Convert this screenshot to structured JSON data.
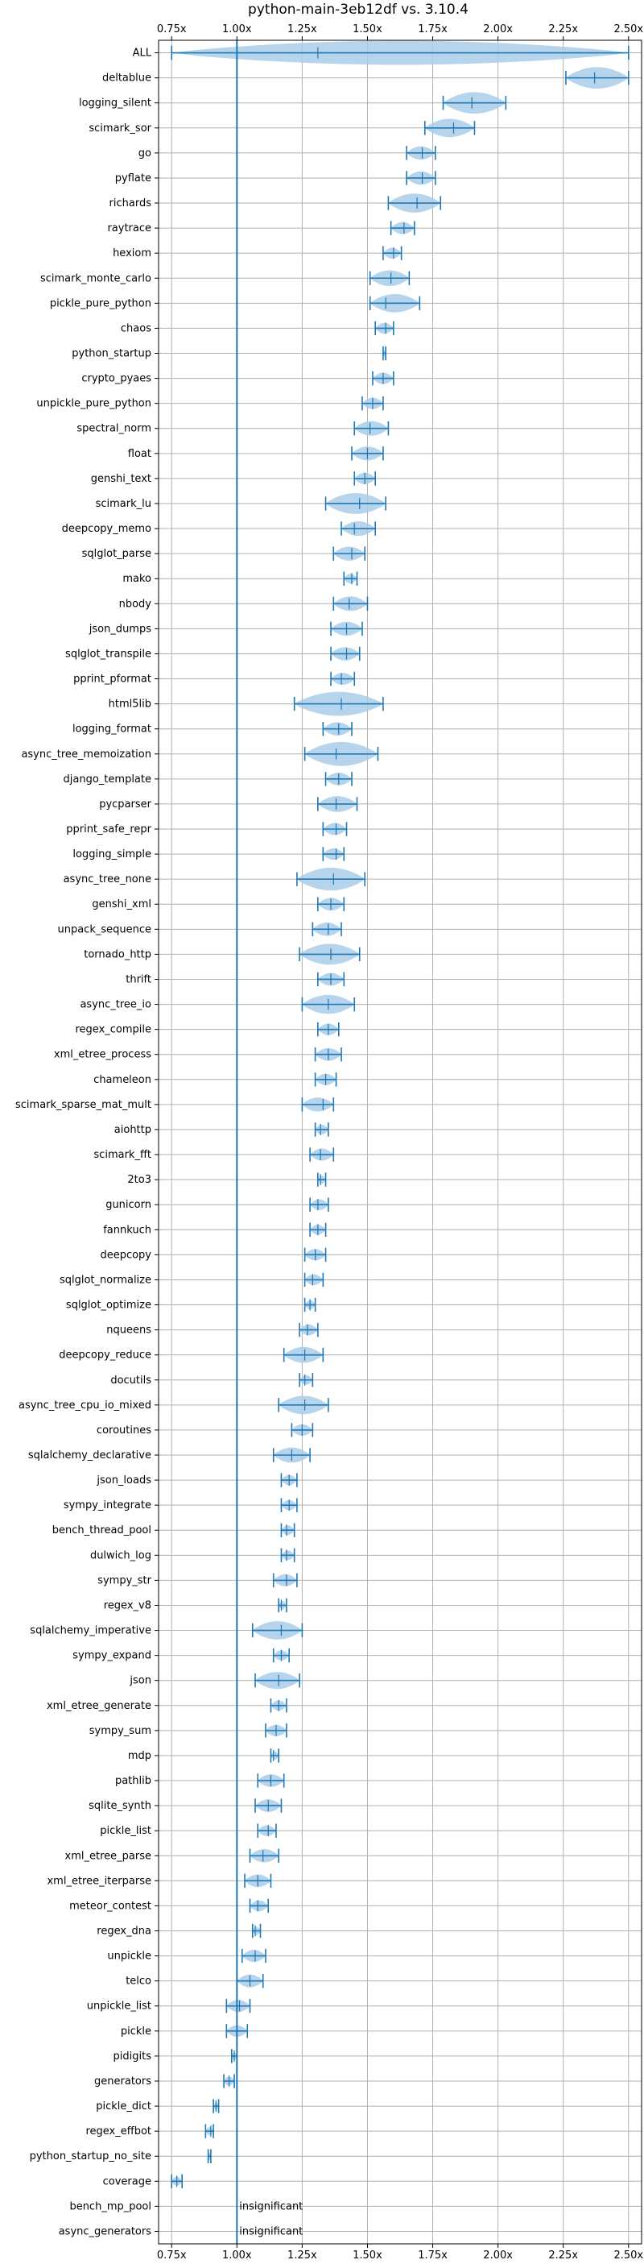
{
  "chart_data": {
    "type": "violin",
    "title": "python-main-3eb12df vs. 3.10.4",
    "xlabel": "",
    "ylabel": "",
    "xlim": [
      0.7,
      2.55
    ],
    "xticks": [
      "0.75x",
      "1.00x",
      "1.25x",
      "1.50x",
      "1.75x",
      "2.00x",
      "2.25x",
      "2.50x"
    ],
    "xtick_values": [
      0.75,
      1.0,
      1.25,
      1.5,
      1.75,
      2.0,
      2.25,
      2.5
    ],
    "reference_line": 1.0,
    "grid": true,
    "colors": {
      "violin": "#1f77b4",
      "violin_fill": "#a9cce8",
      "grid": "#b0b0b0"
    },
    "series": [
      {
        "name": "ALL",
        "min": 0.75,
        "median": 1.31,
        "max": 2.5
      },
      {
        "name": "deltablue",
        "min": 2.26,
        "median": 2.37,
        "max": 2.5
      },
      {
        "name": "logging_silent",
        "min": 1.79,
        "median": 1.9,
        "max": 2.03
      },
      {
        "name": "scimark_sor",
        "min": 1.72,
        "median": 1.83,
        "max": 1.91
      },
      {
        "name": "go",
        "min": 1.65,
        "median": 1.71,
        "max": 1.76
      },
      {
        "name": "pyflate",
        "min": 1.65,
        "median": 1.71,
        "max": 1.76
      },
      {
        "name": "richards",
        "min": 1.58,
        "median": 1.69,
        "max": 1.78
      },
      {
        "name": "raytrace",
        "min": 1.59,
        "median": 1.64,
        "max": 1.68
      },
      {
        "name": "hexiom",
        "min": 1.56,
        "median": 1.6,
        "max": 1.63
      },
      {
        "name": "scimark_monte_carlo",
        "min": 1.51,
        "median": 1.59,
        "max": 1.66
      },
      {
        "name": "pickle_pure_python",
        "min": 1.51,
        "median": 1.57,
        "max": 1.7
      },
      {
        "name": "chaos",
        "min": 1.53,
        "median": 1.57,
        "max": 1.6
      },
      {
        "name": "python_startup",
        "min": 1.56,
        "median": 1.57,
        "max": 1.57
      },
      {
        "name": "crypto_pyaes",
        "min": 1.52,
        "median": 1.56,
        "max": 1.6
      },
      {
        "name": "unpickle_pure_python",
        "min": 1.48,
        "median": 1.52,
        "max": 1.56
      },
      {
        "name": "spectral_norm",
        "min": 1.45,
        "median": 1.51,
        "max": 1.58
      },
      {
        "name": "float",
        "min": 1.44,
        "median": 1.5,
        "max": 1.56
      },
      {
        "name": "genshi_text",
        "min": 1.45,
        "median": 1.49,
        "max": 1.53
      },
      {
        "name": "scimark_lu",
        "min": 1.34,
        "median": 1.47,
        "max": 1.57
      },
      {
        "name": "deepcopy_memo",
        "min": 1.4,
        "median": 1.45,
        "max": 1.53
      },
      {
        "name": "sqlglot_parse",
        "min": 1.37,
        "median": 1.44,
        "max": 1.49
      },
      {
        "name": "mako",
        "min": 1.41,
        "median": 1.44,
        "max": 1.46
      },
      {
        "name": "nbody",
        "min": 1.37,
        "median": 1.43,
        "max": 1.5
      },
      {
        "name": "json_dumps",
        "min": 1.36,
        "median": 1.42,
        "max": 1.48
      },
      {
        "name": "sqlglot_transpile",
        "min": 1.36,
        "median": 1.42,
        "max": 1.47
      },
      {
        "name": "pprint_pformat",
        "min": 1.36,
        "median": 1.4,
        "max": 1.45
      },
      {
        "name": "html5lib",
        "min": 1.22,
        "median": 1.4,
        "max": 1.56
      },
      {
        "name": "logging_format",
        "min": 1.33,
        "median": 1.39,
        "max": 1.44
      },
      {
        "name": "async_tree_memoization",
        "min": 1.26,
        "median": 1.38,
        "max": 1.54
      },
      {
        "name": "django_template",
        "min": 1.34,
        "median": 1.39,
        "max": 1.44
      },
      {
        "name": "pycparser",
        "min": 1.31,
        "median": 1.38,
        "max": 1.46
      },
      {
        "name": "pprint_safe_repr",
        "min": 1.33,
        "median": 1.38,
        "max": 1.42
      },
      {
        "name": "logging_simple",
        "min": 1.33,
        "median": 1.38,
        "max": 1.41
      },
      {
        "name": "async_tree_none",
        "min": 1.23,
        "median": 1.37,
        "max": 1.49
      },
      {
        "name": "genshi_xml",
        "min": 1.31,
        "median": 1.36,
        "max": 1.41
      },
      {
        "name": "unpack_sequence",
        "min": 1.29,
        "median": 1.35,
        "max": 1.4
      },
      {
        "name": "tornado_http",
        "min": 1.24,
        "median": 1.36,
        "max": 1.47
      },
      {
        "name": "thrift",
        "min": 1.31,
        "median": 1.36,
        "max": 1.41
      },
      {
        "name": "async_tree_io",
        "min": 1.25,
        "median": 1.35,
        "max": 1.45
      },
      {
        "name": "regex_compile",
        "min": 1.31,
        "median": 1.35,
        "max": 1.39
      },
      {
        "name": "xml_etree_process",
        "min": 1.3,
        "median": 1.35,
        "max": 1.4
      },
      {
        "name": "chameleon",
        "min": 1.3,
        "median": 1.34,
        "max": 1.38
      },
      {
        "name": "scimark_sparse_mat_mult",
        "min": 1.25,
        "median": 1.33,
        "max": 1.37
      },
      {
        "name": "aiohttp",
        "min": 1.3,
        "median": 1.32,
        "max": 1.35
      },
      {
        "name": "scimark_fft",
        "min": 1.28,
        "median": 1.32,
        "max": 1.37
      },
      {
        "name": "2to3",
        "min": 1.31,
        "median": 1.32,
        "max": 1.34
      },
      {
        "name": "gunicorn",
        "min": 1.28,
        "median": 1.31,
        "max": 1.35
      },
      {
        "name": "fannkuch",
        "min": 1.28,
        "median": 1.31,
        "max": 1.34
      },
      {
        "name": "deepcopy",
        "min": 1.26,
        "median": 1.3,
        "max": 1.34
      },
      {
        "name": "sqlglot_normalize",
        "min": 1.26,
        "median": 1.29,
        "max": 1.33
      },
      {
        "name": "sqlglot_optimize",
        "min": 1.26,
        "median": 1.28,
        "max": 1.3
      },
      {
        "name": "nqueens",
        "min": 1.24,
        "median": 1.27,
        "max": 1.31
      },
      {
        "name": "deepcopy_reduce",
        "min": 1.18,
        "median": 1.26,
        "max": 1.33
      },
      {
        "name": "docutils",
        "min": 1.24,
        "median": 1.26,
        "max": 1.29
      },
      {
        "name": "async_tree_cpu_io_mixed",
        "min": 1.16,
        "median": 1.26,
        "max": 1.35
      },
      {
        "name": "coroutines",
        "min": 1.21,
        "median": 1.25,
        "max": 1.29
      },
      {
        "name": "sqlalchemy_declarative",
        "min": 1.14,
        "median": 1.21,
        "max": 1.28
      },
      {
        "name": "json_loads",
        "min": 1.17,
        "median": 1.2,
        "max": 1.23
      },
      {
        "name": "sympy_integrate",
        "min": 1.17,
        "median": 1.2,
        "max": 1.23
      },
      {
        "name": "bench_thread_pool",
        "min": 1.17,
        "median": 1.19,
        "max": 1.22
      },
      {
        "name": "dulwich_log",
        "min": 1.17,
        "median": 1.19,
        "max": 1.22
      },
      {
        "name": "sympy_str",
        "min": 1.14,
        "median": 1.19,
        "max": 1.23
      },
      {
        "name": "regex_v8",
        "min": 1.16,
        "median": 1.17,
        "max": 1.19
      },
      {
        "name": "sqlalchemy_imperative",
        "min": 1.06,
        "median": 1.17,
        "max": 1.25
      },
      {
        "name": "sympy_expand",
        "min": 1.14,
        "median": 1.17,
        "max": 1.2
      },
      {
        "name": "json",
        "min": 1.07,
        "median": 1.16,
        "max": 1.24
      },
      {
        "name": "xml_etree_generate",
        "min": 1.13,
        "median": 1.16,
        "max": 1.19
      },
      {
        "name": "sympy_sum",
        "min": 1.11,
        "median": 1.15,
        "max": 1.19
      },
      {
        "name": "mdp",
        "min": 1.13,
        "median": 1.14,
        "max": 1.16
      },
      {
        "name": "pathlib",
        "min": 1.08,
        "median": 1.13,
        "max": 1.18
      },
      {
        "name": "sqlite_synth",
        "min": 1.07,
        "median": 1.12,
        "max": 1.17
      },
      {
        "name": "pickle_list",
        "min": 1.08,
        "median": 1.12,
        "max": 1.15
      },
      {
        "name": "xml_etree_parse",
        "min": 1.05,
        "median": 1.1,
        "max": 1.16
      },
      {
        "name": "xml_etree_iterparse",
        "min": 1.03,
        "median": 1.08,
        "max": 1.13
      },
      {
        "name": "meteor_contest",
        "min": 1.05,
        "median": 1.08,
        "max": 1.12
      },
      {
        "name": "regex_dna",
        "min": 1.06,
        "median": 1.07,
        "max": 1.09
      },
      {
        "name": "unpickle",
        "min": 1.02,
        "median": 1.07,
        "max": 1.11
      },
      {
        "name": "telco",
        "min": 1.0,
        "median": 1.05,
        "max": 1.1
      },
      {
        "name": "unpickle_list",
        "min": 0.96,
        "median": 1.01,
        "max": 1.05
      },
      {
        "name": "pickle",
        "min": 0.96,
        "median": 1.0,
        "max": 1.04
      },
      {
        "name": "pidigits",
        "min": 0.98,
        "median": 0.99,
        "max": 1.0
      },
      {
        "name": "generators",
        "min": 0.95,
        "median": 0.97,
        "max": 0.99
      },
      {
        "name": "pickle_dict",
        "min": 0.91,
        "median": 0.92,
        "max": 0.93
      },
      {
        "name": "regex_effbot",
        "min": 0.88,
        "median": 0.9,
        "max": 0.91
      },
      {
        "name": "python_startup_no_site",
        "min": 0.89,
        "median": 0.89,
        "max": 0.9
      },
      {
        "name": "coverage",
        "min": 0.75,
        "median": 0.77,
        "max": 0.79
      },
      {
        "name": "bench_mp_pool",
        "min": null,
        "median": null,
        "max": null,
        "note": "insignificant"
      },
      {
        "name": "async_generators",
        "min": null,
        "median": null,
        "max": null,
        "note": "insignificant"
      }
    ]
  }
}
